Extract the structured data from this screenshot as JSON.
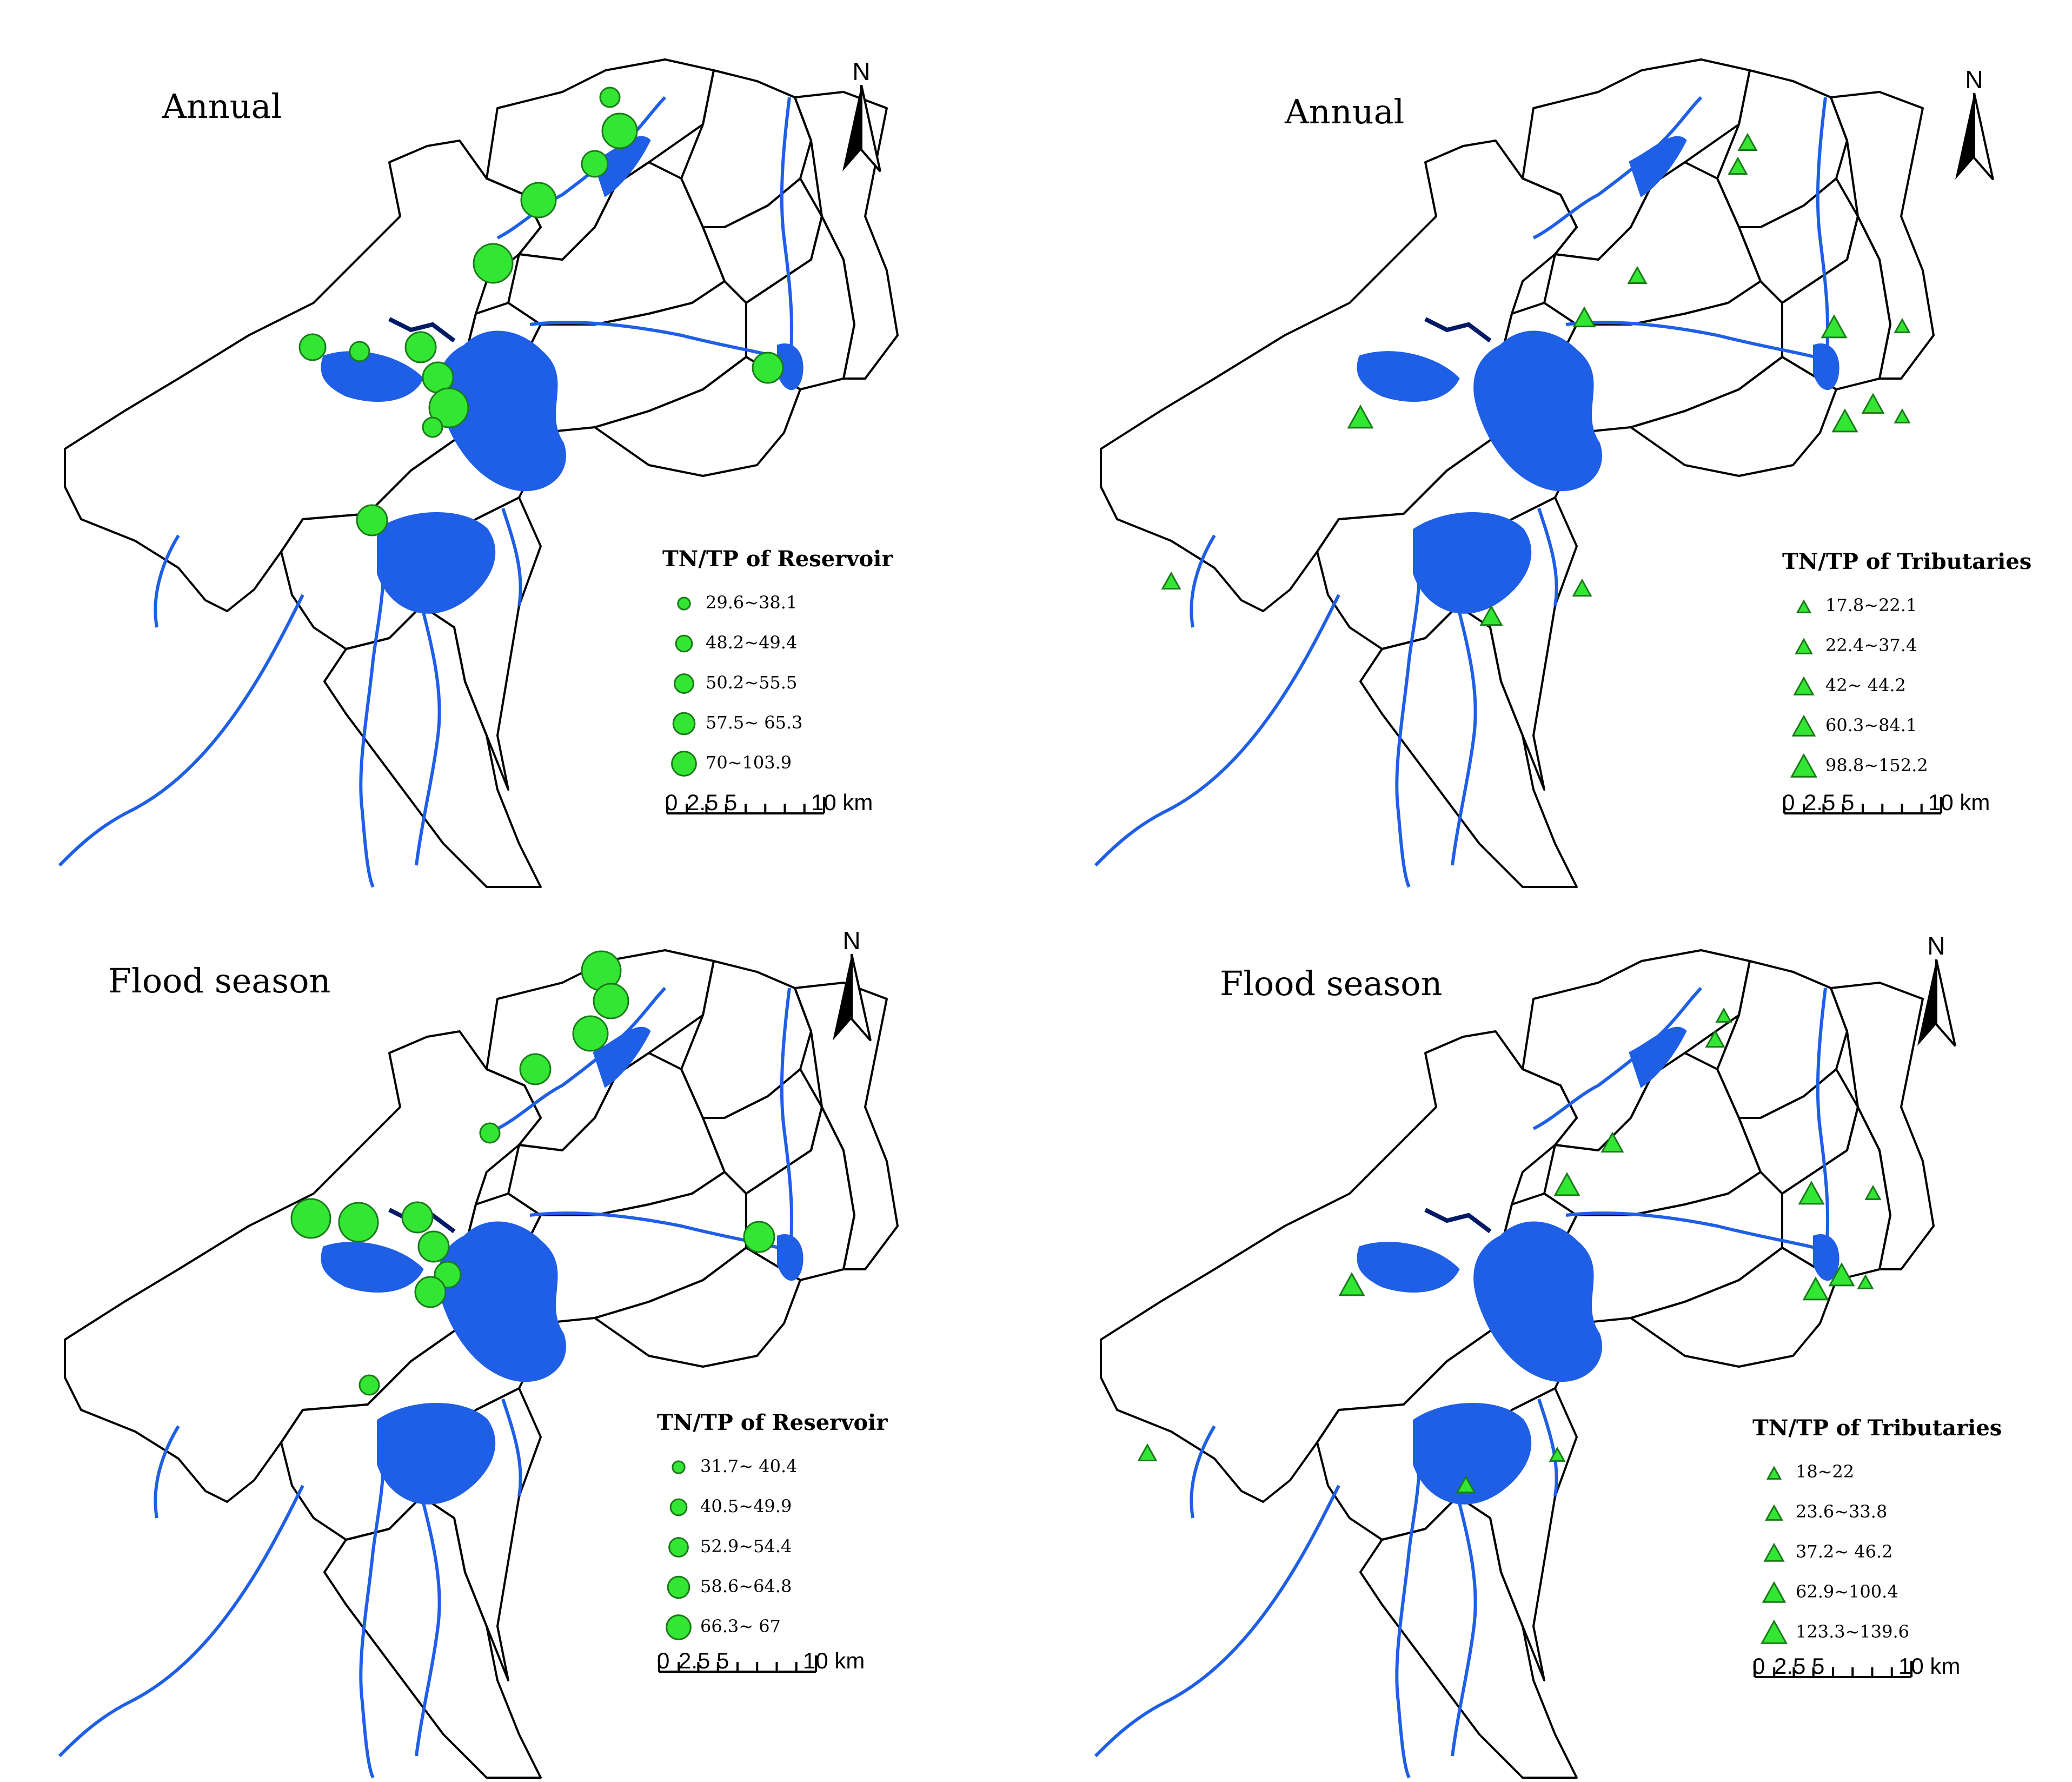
{
  "panels": [
    {
      "title": "Annual",
      "legend_title": "TN/TP of Reservoir",
      "symbol": "circle",
      "classes": [
        "29.6~38.1",
        "48.2~49.4",
        "50.2~55.5",
        "57.5~ 65.3",
        "70~103.9"
      ]
    },
    {
      "title": "Annual",
      "legend_title": "TN/TP of Tributaries",
      "symbol": "triangle",
      "classes": [
        "17.8~22.1",
        "22.4~37.4",
        "42~ 44.2",
        "60.3~84.1",
        "98.8~152.2"
      ]
    },
    {
      "title": "Flood season",
      "legend_title": "TN/TP of Reservoir",
      "symbol": "circle",
      "classes": [
        "31.7~ 40.4",
        "40.5~49.9",
        "52.9~54.4",
        "58.6~64.8",
        "66.3~ 67"
      ]
    },
    {
      "title": "Flood season",
      "legend_title": "TN/TP of Tributaries",
      "symbol": "triangle",
      "classes": [
        "18~22",
        "23.6~33.8",
        "37.2~ 46.2",
        "62.9~100.4",
        "123.3~139.6"
      ]
    }
  ],
  "north_label": "N",
  "scale_bar": {
    "ticks": [
      "0",
      "2.5",
      "5",
      "10 km"
    ]
  },
  "colors": {
    "marker": "#33e633",
    "water": "#1f5fe6",
    "boundary": "#000000"
  }
}
